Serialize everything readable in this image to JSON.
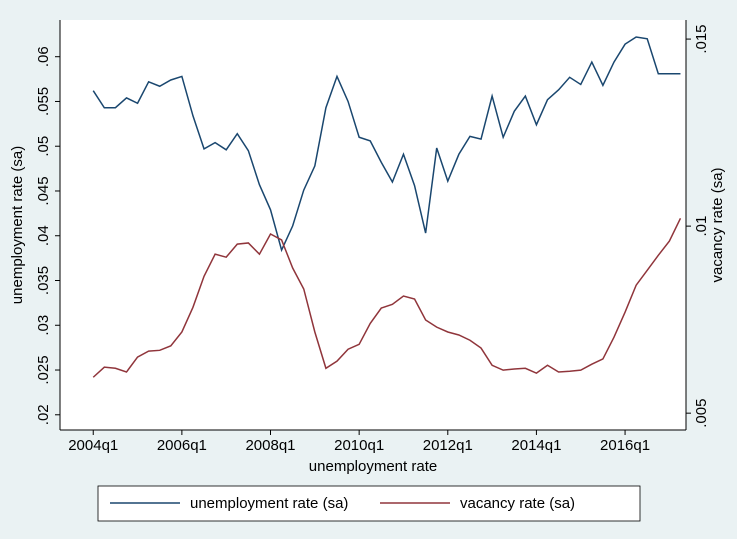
{
  "chart_data": {
    "type": "line",
    "xlabel": "unemployment rate",
    "ylabel": "unemployment rate (sa)",
    "y2label": "vacancy rate (sa)",
    "x": [
      176,
      177,
      178,
      179,
      180,
      181,
      182,
      183,
      184,
      185,
      186,
      187,
      188,
      189,
      190,
      191,
      192,
      193,
      194,
      195,
      196,
      197,
      198,
      199,
      200,
      201,
      202,
      203,
      204,
      205,
      206,
      207,
      208,
      209,
      210,
      211,
      212,
      213,
      214,
      215,
      216,
      217,
      218,
      219,
      220,
      221,
      222,
      223,
      224,
      225,
      226,
      227,
      228,
      229
    ],
    "xlim": [
      173,
      229.5
    ],
    "xticks": [
      {
        "value": 176,
        "label": "2004q1"
      },
      {
        "value": 184,
        "label": "2006q1"
      },
      {
        "value": 192,
        "label": "2008q1"
      },
      {
        "value": 200,
        "label": "2010q1"
      },
      {
        "value": 208,
        "label": "2012q1"
      },
      {
        "value": 216,
        "label": "2014q1"
      },
      {
        "value": 224,
        "label": "2016q1"
      }
    ],
    "ylim": [
      0.0183,
      0.0641
    ],
    "yticks": [
      {
        "value": 0.02,
        "label": ".02"
      },
      {
        "value": 0.025,
        "label": ".025"
      },
      {
        "value": 0.03,
        "label": ".03"
      },
      {
        "value": 0.035,
        "label": ".035"
      },
      {
        "value": 0.04,
        "label": ".04"
      },
      {
        "value": 0.045,
        "label": ".045"
      },
      {
        "value": 0.05,
        "label": ".05"
      },
      {
        "value": 0.055,
        "label": ".055"
      },
      {
        "value": 0.06,
        "label": ".06"
      }
    ],
    "y2lim": [
      0.00455,
      0.01551
    ],
    "y2ticks": [
      {
        "value": 0.005,
        "label": ".005"
      },
      {
        "value": 0.01,
        "label": ".01"
      },
      {
        "value": 0.015,
        "label": ".015"
      }
    ],
    "series": [
      {
        "name": "unemployment rate (sa)",
        "color": "#1a476f",
        "values": [
          0.0562,
          0.0543,
          0.0543,
          0.0554,
          0.0548,
          0.0572,
          0.0567,
          0.0574,
          0.0578,
          0.0534,
          0.0497,
          0.0504,
          0.0496,
          0.0514,
          0.0495,
          0.0457,
          0.0429,
          0.0384,
          0.0411,
          0.0451,
          0.0478,
          0.0543,
          0.0578,
          0.055,
          0.051,
          0.0506,
          0.0482,
          0.046,
          0.0491,
          0.0456,
          0.0403,
          0.0498,
          0.0461,
          0.0491,
          0.0511,
          0.0508,
          0.0556,
          0.051,
          0.0539,
          0.0556,
          0.0524,
          0.0552,
          0.0563,
          0.0577,
          0.0569,
          0.0594,
          0.0568,
          0.0594,
          0.0614,
          0.0622,
          0.062,
          0.0581,
          0.0581,
          0.0581
        ]
      },
      {
        "name": "vacancy rate (sa)",
        "color": "#90353b",
        "axis": "y2",
        "values": [
          0.00596,
          0.00623,
          0.0062,
          0.0061,
          0.0065,
          0.00666,
          0.00668,
          0.0068,
          0.00717,
          0.00783,
          0.00866,
          0.00925,
          0.00917,
          0.00952,
          0.00955,
          0.00925,
          0.00979,
          0.00963,
          0.00888,
          0.00832,
          0.00717,
          0.0062,
          0.00639,
          0.00671,
          0.00684,
          0.0074,
          0.00781,
          0.00791,
          0.00813,
          0.00805,
          0.00749,
          0.0073,
          0.00717,
          0.00709,
          0.00695,
          0.00674,
          0.00628,
          0.00615,
          0.00618,
          0.0062,
          0.00607,
          0.00628,
          0.0061,
          0.00612,
          0.00615,
          0.00631,
          0.00645,
          0.00703,
          0.0077,
          0.00842,
          0.00882,
          0.00922,
          0.0096,
          0.01021
        ]
      }
    ]
  }
}
